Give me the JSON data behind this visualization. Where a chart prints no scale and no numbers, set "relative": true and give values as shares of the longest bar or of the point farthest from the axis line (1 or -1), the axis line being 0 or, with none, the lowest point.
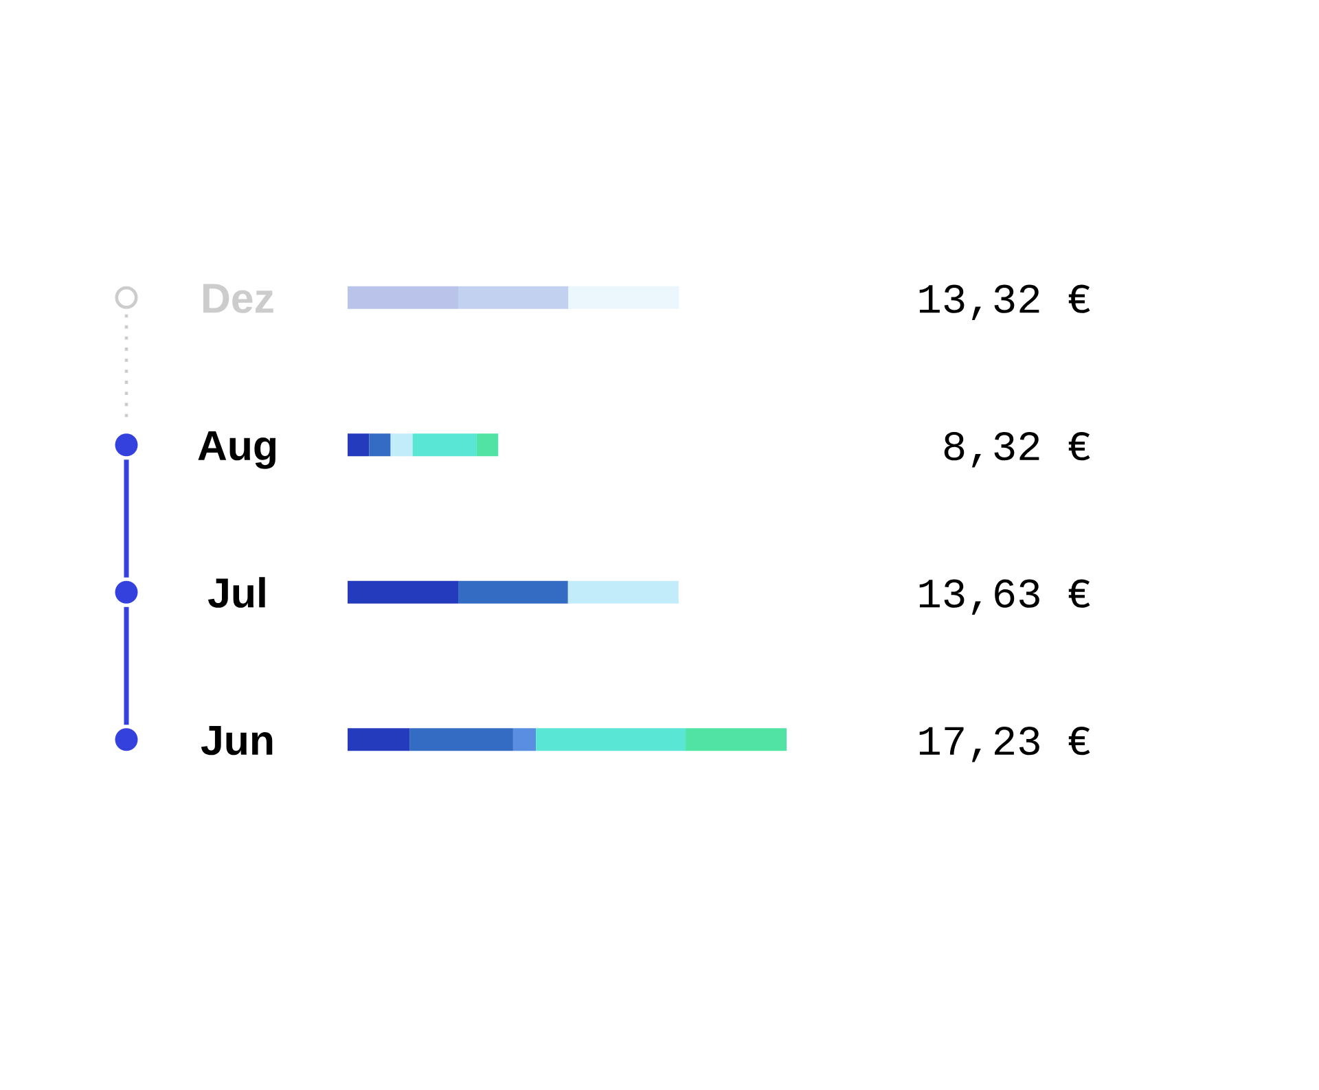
{
  "chart_data": {
    "type": "bar",
    "orientation": "horizontal",
    "stacked": true,
    "relative": true,
    "tick_labels": "y",
    "categories": [
      "Dez",
      "Aug",
      "Jul",
      "Jun"
    ],
    "series": [
      {
        "values": [
          0.252,
          0.049,
          0.252,
          0.141
        ],
        "colors": [
          "#bac3e9",
          "#243bbe",
          "#243bbe",
          "#243bbe"
        ]
      },
      {
        "values": [
          0.251,
          0.049,
          0.25,
          0.236
        ],
        "colors": [
          "#c2d1ef",
          "#346cc3",
          "#346cc3",
          "#346cc3"
        ]
      },
      {
        "values": [
          0.252,
          0.05,
          0.252,
          0.052
        ],
        "colors": [
          "#ecf6fd",
          "#c3ecfb",
          "#c3ecfb",
          "#5a8ee0"
        ]
      },
      {
        "values": [
          null,
          0.146,
          null,
          0.341
        ],
        "colors": [
          null,
          "#5ae6d5",
          null,
          "#5ae6d5"
        ]
      },
      {
        "values": [
          null,
          0.049,
          null,
          0.23
        ],
        "colors": [
          null,
          "#50e3a4",
          null,
          "#50e3a4"
        ]
      }
    ],
    "annotations": [
      "13,32 €",
      "8,32 €",
      "13,63 €",
      "17,23 €"
    ]
  }
}
